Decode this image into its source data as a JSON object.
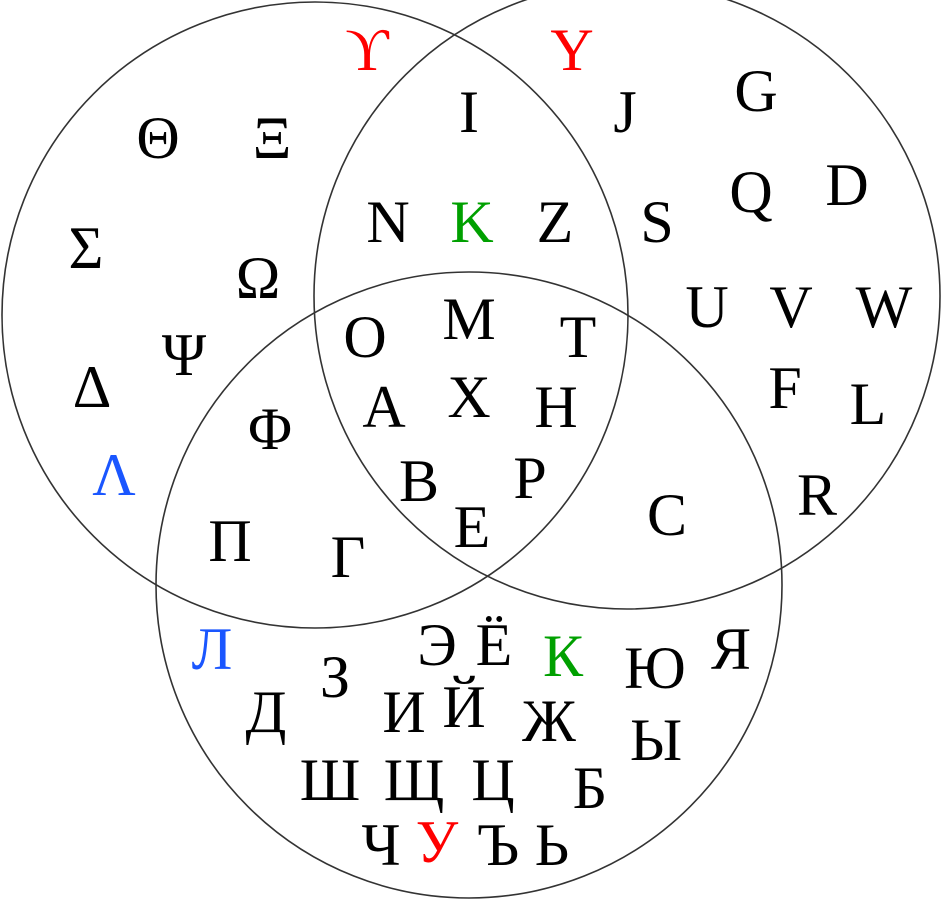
{
  "colors": {
    "default": "#000000",
    "red": "#ff0000",
    "green": "#00a000",
    "blue": "#1a56ff",
    "circle_stroke": "#333333"
  },
  "regions": {
    "greek_only": [
      {
        "char": "ϒ",
        "color": "red"
      },
      {
        "char": "Θ",
        "color": "default"
      },
      {
        "char": "Ξ",
        "color": "default"
      },
      {
        "char": "Σ",
        "color": "default"
      },
      {
        "char": "Ω",
        "color": "default"
      },
      {
        "char": "Ψ",
        "color": "default"
      },
      {
        "char": "Δ",
        "color": "default"
      },
      {
        "char": "Λ",
        "color": "blue"
      }
    ],
    "greek_latin": [
      {
        "char": "I",
        "color": "default"
      },
      {
        "char": "N",
        "color": "default"
      },
      {
        "char": "K",
        "color": "green"
      },
      {
        "char": "Z",
        "color": "default"
      }
    ],
    "latin_only": [
      {
        "char": "Y",
        "color": "red"
      },
      {
        "char": "J",
        "color": "default"
      },
      {
        "char": "G",
        "color": "default"
      },
      {
        "char": "S",
        "color": "default"
      },
      {
        "char": "Q",
        "color": "default"
      },
      {
        "char": "D",
        "color": "default"
      },
      {
        "char": "U",
        "color": "default"
      },
      {
        "char": "V",
        "color": "default"
      },
      {
        "char": "W",
        "color": "default"
      },
      {
        "char": "F",
        "color": "default"
      },
      {
        "char": "L",
        "color": "default"
      },
      {
        "char": "R",
        "color": "default"
      }
    ],
    "all_three": [
      {
        "char": "O",
        "color": "default"
      },
      {
        "char": "M",
        "color": "default"
      },
      {
        "char": "T",
        "color": "default"
      },
      {
        "char": "A",
        "color": "default"
      },
      {
        "char": "X",
        "color": "default"
      },
      {
        "char": "H",
        "color": "default"
      },
      {
        "char": "B",
        "color": "default"
      },
      {
        "char": "P",
        "color": "default"
      },
      {
        "char": "E",
        "color": "default"
      }
    ],
    "greek_cyrillic": [
      {
        "char": "Φ",
        "color": "default"
      },
      {
        "char": "Π",
        "color": "default"
      },
      {
        "char": "Γ",
        "color": "default"
      }
    ],
    "latin_cyrillic": [
      {
        "char": "C",
        "color": "default"
      }
    ],
    "cyrillic_only": [
      {
        "char": "Л",
        "color": "blue"
      },
      {
        "char": "Э",
        "color": "default"
      },
      {
        "char": "Ё",
        "color": "default"
      },
      {
        "char": "К",
        "color": "green"
      },
      {
        "char": "Ю",
        "color": "default"
      },
      {
        "char": "Я",
        "color": "default"
      },
      {
        "char": "З",
        "color": "default"
      },
      {
        "char": "Д",
        "color": "default"
      },
      {
        "char": "И",
        "color": "default"
      },
      {
        "char": "Й",
        "color": "default"
      },
      {
        "char": "Ж",
        "color": "default"
      },
      {
        "char": "Ы",
        "color": "default"
      },
      {
        "char": "Ш",
        "color": "default"
      },
      {
        "char": "Щ",
        "color": "default"
      },
      {
        "char": "Ц",
        "color": "default"
      },
      {
        "char": "Б",
        "color": "default"
      },
      {
        "char": "Ч",
        "color": "default"
      },
      {
        "char": "У",
        "color": "red"
      },
      {
        "char": "Ъ",
        "color": "default"
      },
      {
        "char": "Ь",
        "color": "default"
      }
    ]
  }
}
